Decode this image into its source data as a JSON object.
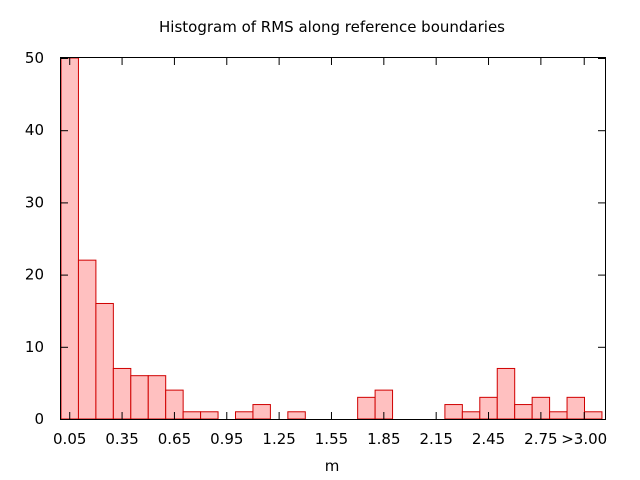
{
  "chart_data": {
    "type": "bar",
    "title": "Histogram of RMS along reference boundaries",
    "xlabel": "m",
    "ylabel": "",
    "ylim": [
      0,
      50
    ],
    "y_ticks": [
      0,
      10,
      20,
      30,
      40,
      50
    ],
    "x_tick_labels": [
      "0.05",
      "0.35",
      "0.65",
      "0.95",
      "1.25",
      "1.55",
      "1.85",
      "2.15",
      "2.45",
      "2.75",
      ">3.00"
    ],
    "bin_width": 0.1,
    "bins": [
      {
        "label": "0.05",
        "value": 50
      },
      {
        "label": "0.15",
        "value": 22
      },
      {
        "label": "0.25",
        "value": 16
      },
      {
        "label": "0.35",
        "value": 7
      },
      {
        "label": "0.45",
        "value": 6
      },
      {
        "label": "0.55",
        "value": 6
      },
      {
        "label": "0.65",
        "value": 4
      },
      {
        "label": "0.75",
        "value": 1
      },
      {
        "label": "0.85",
        "value": 1
      },
      {
        "label": "0.95",
        "value": 0
      },
      {
        "label": "1.05",
        "value": 1
      },
      {
        "label": "1.15",
        "value": 2
      },
      {
        "label": "1.25",
        "value": 0
      },
      {
        "label": "1.35",
        "value": 1
      },
      {
        "label": "1.45",
        "value": 0
      },
      {
        "label": "1.55",
        "value": 0
      },
      {
        "label": "1.65",
        "value": 0
      },
      {
        "label": "1.75",
        "value": 3
      },
      {
        "label": "1.85",
        "value": 4
      },
      {
        "label": "1.95",
        "value": 0
      },
      {
        "label": "2.05",
        "value": 0
      },
      {
        "label": "2.15",
        "value": 0
      },
      {
        "label": "2.25",
        "value": 2
      },
      {
        "label": "2.35",
        "value": 1
      },
      {
        "label": "2.45",
        "value": 3
      },
      {
        "label": "2.55",
        "value": 7
      },
      {
        "label": "2.65",
        "value": 2
      },
      {
        "label": "2.75",
        "value": 3
      },
      {
        "label": "2.85",
        "value": 1
      },
      {
        "label": "2.95",
        "value": 3
      },
      {
        "label": ">3.00",
        "value": 1
      }
    ],
    "bar_fill": "#ffc0c0",
    "bar_stroke": "#d00000",
    "grid": false,
    "legend": "none"
  }
}
